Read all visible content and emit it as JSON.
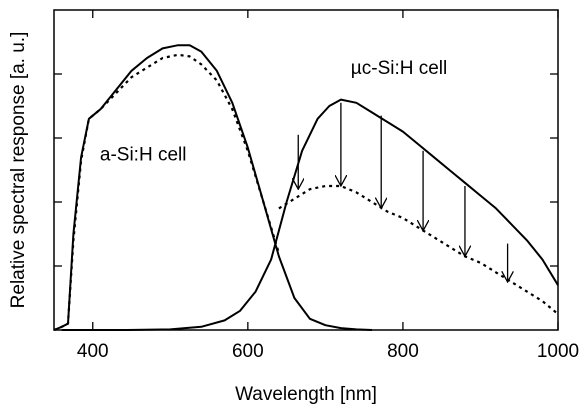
{
  "chart_data": {
    "type": "line",
    "xlabel": "Wavelength [nm]",
    "ylabel": "Relative spectral response [a. u.]",
    "xlim": [
      350,
      1000
    ],
    "ylim": [
      0,
      1.0
    ],
    "xticks": [
      400,
      600,
      800,
      1000
    ],
    "yticks": [
      0.2,
      0.4,
      0.6,
      0.8
    ],
    "grid": false,
    "annotations": [
      {
        "text": "a-Si:H cell",
        "x": 465,
        "y": 0.53
      },
      {
        "text": "µc-Si:H cell",
        "x": 795,
        "y": 0.8
      }
    ],
    "series": [
      {
        "line": "solid",
        "x": [
          350,
          360,
          368,
          375,
          385,
          395,
          410,
          430,
          450,
          470,
          490,
          510,
          525,
          540,
          560,
          580,
          600,
          620,
          640,
          660,
          680,
          700,
          720,
          740,
          760
        ],
        "values": [
          0.0,
          0.01,
          0.02,
          0.3,
          0.54,
          0.66,
          0.69,
          0.75,
          0.81,
          0.85,
          0.88,
          0.89,
          0.89,
          0.87,
          0.81,
          0.71,
          0.57,
          0.4,
          0.23,
          0.1,
          0.035,
          0.015,
          0.006,
          0.002,
          0.0
        ]
      },
      {
        "line": "dotted",
        "x": [
          350,
          360,
          368,
          375,
          385,
          395,
          410,
          430,
          450,
          470,
          490,
          510,
          525,
          540,
          560,
          580,
          600,
          620,
          640
        ],
        "values": [
          0.0,
          0.01,
          0.02,
          0.28,
          0.53,
          0.66,
          0.69,
          0.74,
          0.79,
          0.82,
          0.85,
          0.86,
          0.855,
          0.83,
          0.78,
          0.69,
          0.56,
          0.4,
          0.24
        ]
      },
      {
        "line": "solid",
        "x": [
          360,
          440,
          500,
          540,
          570,
          590,
          610,
          630,
          650,
          670,
          690,
          705,
          720,
          740,
          760,
          780,
          800,
          820,
          840,
          860,
          880,
          900,
          920,
          940,
          960,
          980,
          1000
        ],
        "values": [
          0.0,
          0.0,
          0.002,
          0.01,
          0.03,
          0.06,
          0.12,
          0.22,
          0.4,
          0.56,
          0.66,
          0.7,
          0.72,
          0.71,
          0.68,
          0.65,
          0.62,
          0.58,
          0.54,
          0.5,
          0.46,
          0.42,
          0.38,
          0.33,
          0.28,
          0.22,
          0.14
        ]
      },
      {
        "line": "dotted",
        "x": [
          640,
          660,
          680,
          700,
          720,
          740,
          760,
          780,
          800,
          820,
          840,
          860,
          880,
          900,
          920,
          940,
          960,
          980,
          1000
        ],
        "values": [
          0.38,
          0.41,
          0.44,
          0.45,
          0.45,
          0.43,
          0.4,
          0.37,
          0.35,
          0.32,
          0.29,
          0.26,
          0.23,
          0.21,
          0.18,
          0.15,
          0.12,
          0.09,
          0.05
        ]
      }
    ],
    "arrows": [
      {
        "x": 665,
        "from": 0.61,
        "to": 0.44
      },
      {
        "x": 720,
        "from": 0.71,
        "to": 0.45
      },
      {
        "x": 772,
        "from": 0.67,
        "to": 0.38
      },
      {
        "x": 826,
        "from": 0.56,
        "to": 0.31
      },
      {
        "x": 880,
        "from": 0.45,
        "to": 0.23
      },
      {
        "x": 935,
        "from": 0.27,
        "to": 0.15
      }
    ]
  }
}
